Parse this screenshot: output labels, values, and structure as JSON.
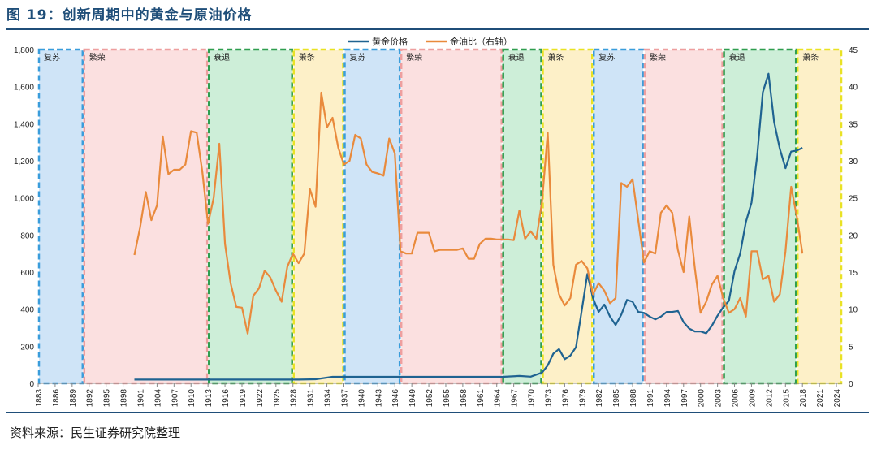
{
  "figure": {
    "title": "图 19：创新周期中的黄金与原油价格",
    "source": "资料来源：民生证券研究院整理"
  },
  "colors": {
    "gold": "#1f6391",
    "ratio": "#e98a3c",
    "title": "#1f4e79"
  },
  "chart_data": {
    "type": "line",
    "legend_position": "top-center",
    "grid": false,
    "x_range": [
      1883,
      2025
    ],
    "x_ticks": [
      "1883",
      "1886",
      "1889",
      "1892",
      "1895",
      "1898",
      "1901",
      "1904",
      "1907",
      "1910",
      "1913",
      "1916",
      "1919",
      "1922",
      "1925",
      "1928",
      "1931",
      "1934",
      "1937",
      "1940",
      "1943",
      "1946",
      "1949",
      "1952",
      "1955",
      "1958",
      "1961",
      "1964",
      "1967",
      "1970",
      "1973",
      "1976",
      "1979",
      "1982",
      "1985",
      "1988",
      "1991",
      "1994",
      "1997",
      "2000",
      "2003",
      "2006",
      "2009",
      "2012",
      "2015",
      "2018",
      "2021",
      "2024"
    ],
    "y_left": {
      "range": [
        0,
        1800
      ],
      "ticks": [
        "0",
        "200",
        "400",
        "600",
        "800",
        "1,000",
        "1,200",
        "1,400",
        "1,600",
        "1,800"
      ]
    },
    "y_right": {
      "range": [
        0,
        45
      ],
      "ticks": [
        "0",
        "5",
        "10",
        "15",
        "20",
        "25",
        "30",
        "35",
        "40",
        "45"
      ]
    },
    "phases": [
      {
        "label": "复苏",
        "start": 1883,
        "end": 1891,
        "fill": "#cfe4f7",
        "border": "#3a9ddb"
      },
      {
        "label": "繁荣",
        "start": 1891,
        "end": 1913,
        "fill": "#fbe0e0",
        "border": "#ee9f9f"
      },
      {
        "label": "衰退",
        "start": 1913,
        "end": 1928,
        "fill": "#cdeed8",
        "border": "#2f9e4f"
      },
      {
        "label": "萧条",
        "start": 1928,
        "end": 1937,
        "fill": "#fdf0c8",
        "border": "#e9e224"
      },
      {
        "label": "复苏",
        "start": 1937,
        "end": 1947,
        "fill": "#cfe4f7",
        "border": "#3a9ddb"
      },
      {
        "label": "繁荣",
        "start": 1947,
        "end": 1965,
        "fill": "#fbe0e0",
        "border": "#ee9f9f"
      },
      {
        "label": "衰退",
        "start": 1965,
        "end": 1972,
        "fill": "#cdeed8",
        "border": "#2f9e4f"
      },
      {
        "label": "萧条",
        "start": 1972,
        "end": 1981,
        "fill": "#fdf0c8",
        "border": "#e9e224"
      },
      {
        "label": "复苏",
        "start": 1981,
        "end": 1990,
        "fill": "#cfe4f7",
        "border": "#3a9ddb"
      },
      {
        "label": "繁荣",
        "start": 1990,
        "end": 2004,
        "fill": "#fbe0e0",
        "border": "#ee9f9f"
      },
      {
        "label": "衰退",
        "start": 2004,
        "end": 2017,
        "fill": "#cdeed8",
        "border": "#2f9e4f"
      },
      {
        "label": "萧条",
        "start": 2017,
        "end": 2025,
        "fill": "#fdf0c8",
        "border": "#e9e224"
      }
    ],
    "series": [
      {
        "name": "黄金价格",
        "axis": "left",
        "x": [
          1900,
          1910,
          1920,
          1929,
          1932,
          1935,
          1940,
          1950,
          1960,
          1965,
          1968,
          1970,
          1972,
          1973,
          1974,
          1975,
          1976,
          1977,
          1978,
          1979,
          1980,
          1981,
          1982,
          1983,
          1984,
          1985,
          1986,
          1987,
          1988,
          1989,
          1990,
          1991,
          1992,
          1993,
          1994,
          1995,
          1996,
          1997,
          1998,
          1999,
          2000,
          2001,
          2002,
          2003,
          2004,
          2005,
          2006,
          2007,
          2008,
          2009,
          2010,
          2011,
          2012,
          2013,
          2014,
          2015,
          2016,
          2017,
          2018
        ],
        "values": [
          20,
          20,
          20,
          20,
          22,
          35,
          35,
          35,
          35,
          35,
          40,
          36,
          58,
          97,
          160,
          185,
          130,
          150,
          195,
          390,
          590,
          460,
          385,
          425,
          360,
          315,
          370,
          450,
          440,
          385,
          380,
          360,
          345,
          360,
          385,
          385,
          390,
          330,
          295,
          280,
          280,
          270,
          310,
          365,
          410,
          445,
          605,
          700,
          870,
          975,
          1225,
          1570,
          1670,
          1410,
          1265,
          1160,
          1250,
          1255,
          1270
        ]
      },
      {
        "name": "金油比（右轴）",
        "axis": "right",
        "x": [
          1900,
          1901,
          1902,
          1903,
          1904,
          1905,
          1906,
          1907,
          1908,
          1909,
          1910,
          1911,
          1912,
          1913,
          1914,
          1915,
          1916,
          1917,
          1918,
          1919,
          1920,
          1921,
          1922,
          1923,
          1924,
          1925,
          1926,
          1927,
          1928,
          1929,
          1930,
          1931,
          1932,
          1933,
          1934,
          1935,
          1936,
          1937,
          1938,
          1939,
          1940,
          1941,
          1942,
          1943,
          1944,
          1945,
          1946,
          1947,
          1948,
          1949,
          1950,
          1951,
          1952,
          1953,
          1954,
          1955,
          1956,
          1957,
          1958,
          1959,
          1960,
          1961,
          1962,
          1963,
          1964,
          1965,
          1966,
          1967,
          1968,
          1969,
          1970,
          1971,
          1972,
          1973,
          1974,
          1975,
          1976,
          1977,
          1978,
          1979,
          1980,
          1981,
          1982,
          1983,
          1984,
          1985,
          1986,
          1987,
          1988,
          1989,
          1990,
          1991,
          1992,
          1993,
          1994,
          1995,
          1996,
          1997,
          1998,
          1999,
          2000,
          2001,
          2002,
          2003,
          2004,
          2005,
          2006,
          2007,
          2008,
          2009,
          2010,
          2011,
          2012,
          2013,
          2014,
          2015,
          2016,
          2017,
          2018
        ],
        "values": [
          17.3,
          21.0,
          25.8,
          22.0,
          24.0,
          33.3,
          28.2,
          28.8,
          28.8,
          29.5,
          34.0,
          33.8,
          28.5,
          21.5,
          25.0,
          32.3,
          18.8,
          13.5,
          10.3,
          10.2,
          6.7,
          11.8,
          12.8,
          15.2,
          14.3,
          12.5,
          11.0,
          15.7,
          17.5,
          16.2,
          17.5,
          26.2,
          23.8,
          39.2,
          34.5,
          35.8,
          31.8,
          29.5,
          30.0,
          33.5,
          33.0,
          29.5,
          28.5,
          28.3,
          28.0,
          33.0,
          31.0,
          17.8,
          17.5,
          17.5,
          20.3,
          20.3,
          20.3,
          17.8,
          18.0,
          18.0,
          18.0,
          18.0,
          18.2,
          16.8,
          16.8,
          18.8,
          19.5,
          19.5,
          19.4,
          19.4,
          19.4,
          19.3,
          23.3,
          19.5,
          20.5,
          19.5,
          24.5,
          33.8,
          16.0,
          12.0,
          10.5,
          11.5,
          16.0,
          16.5,
          15.5,
          12.0,
          13.5,
          12.5,
          10.8,
          11.5,
          27.0,
          26.5,
          27.5,
          22.0,
          16.3,
          17.8,
          17.5,
          23.0,
          24.0,
          23.0,
          18.0,
          15.0,
          22.5,
          15.5,
          9.5,
          11.0,
          13.3,
          14.5,
          11.5,
          9.5,
          10.0,
          11.5,
          9.0,
          17.8,
          17.8,
          14.0,
          14.5,
          11.0,
          12.0,
          17.8,
          26.5,
          22.5,
          17.5
        ]
      }
    ]
  }
}
